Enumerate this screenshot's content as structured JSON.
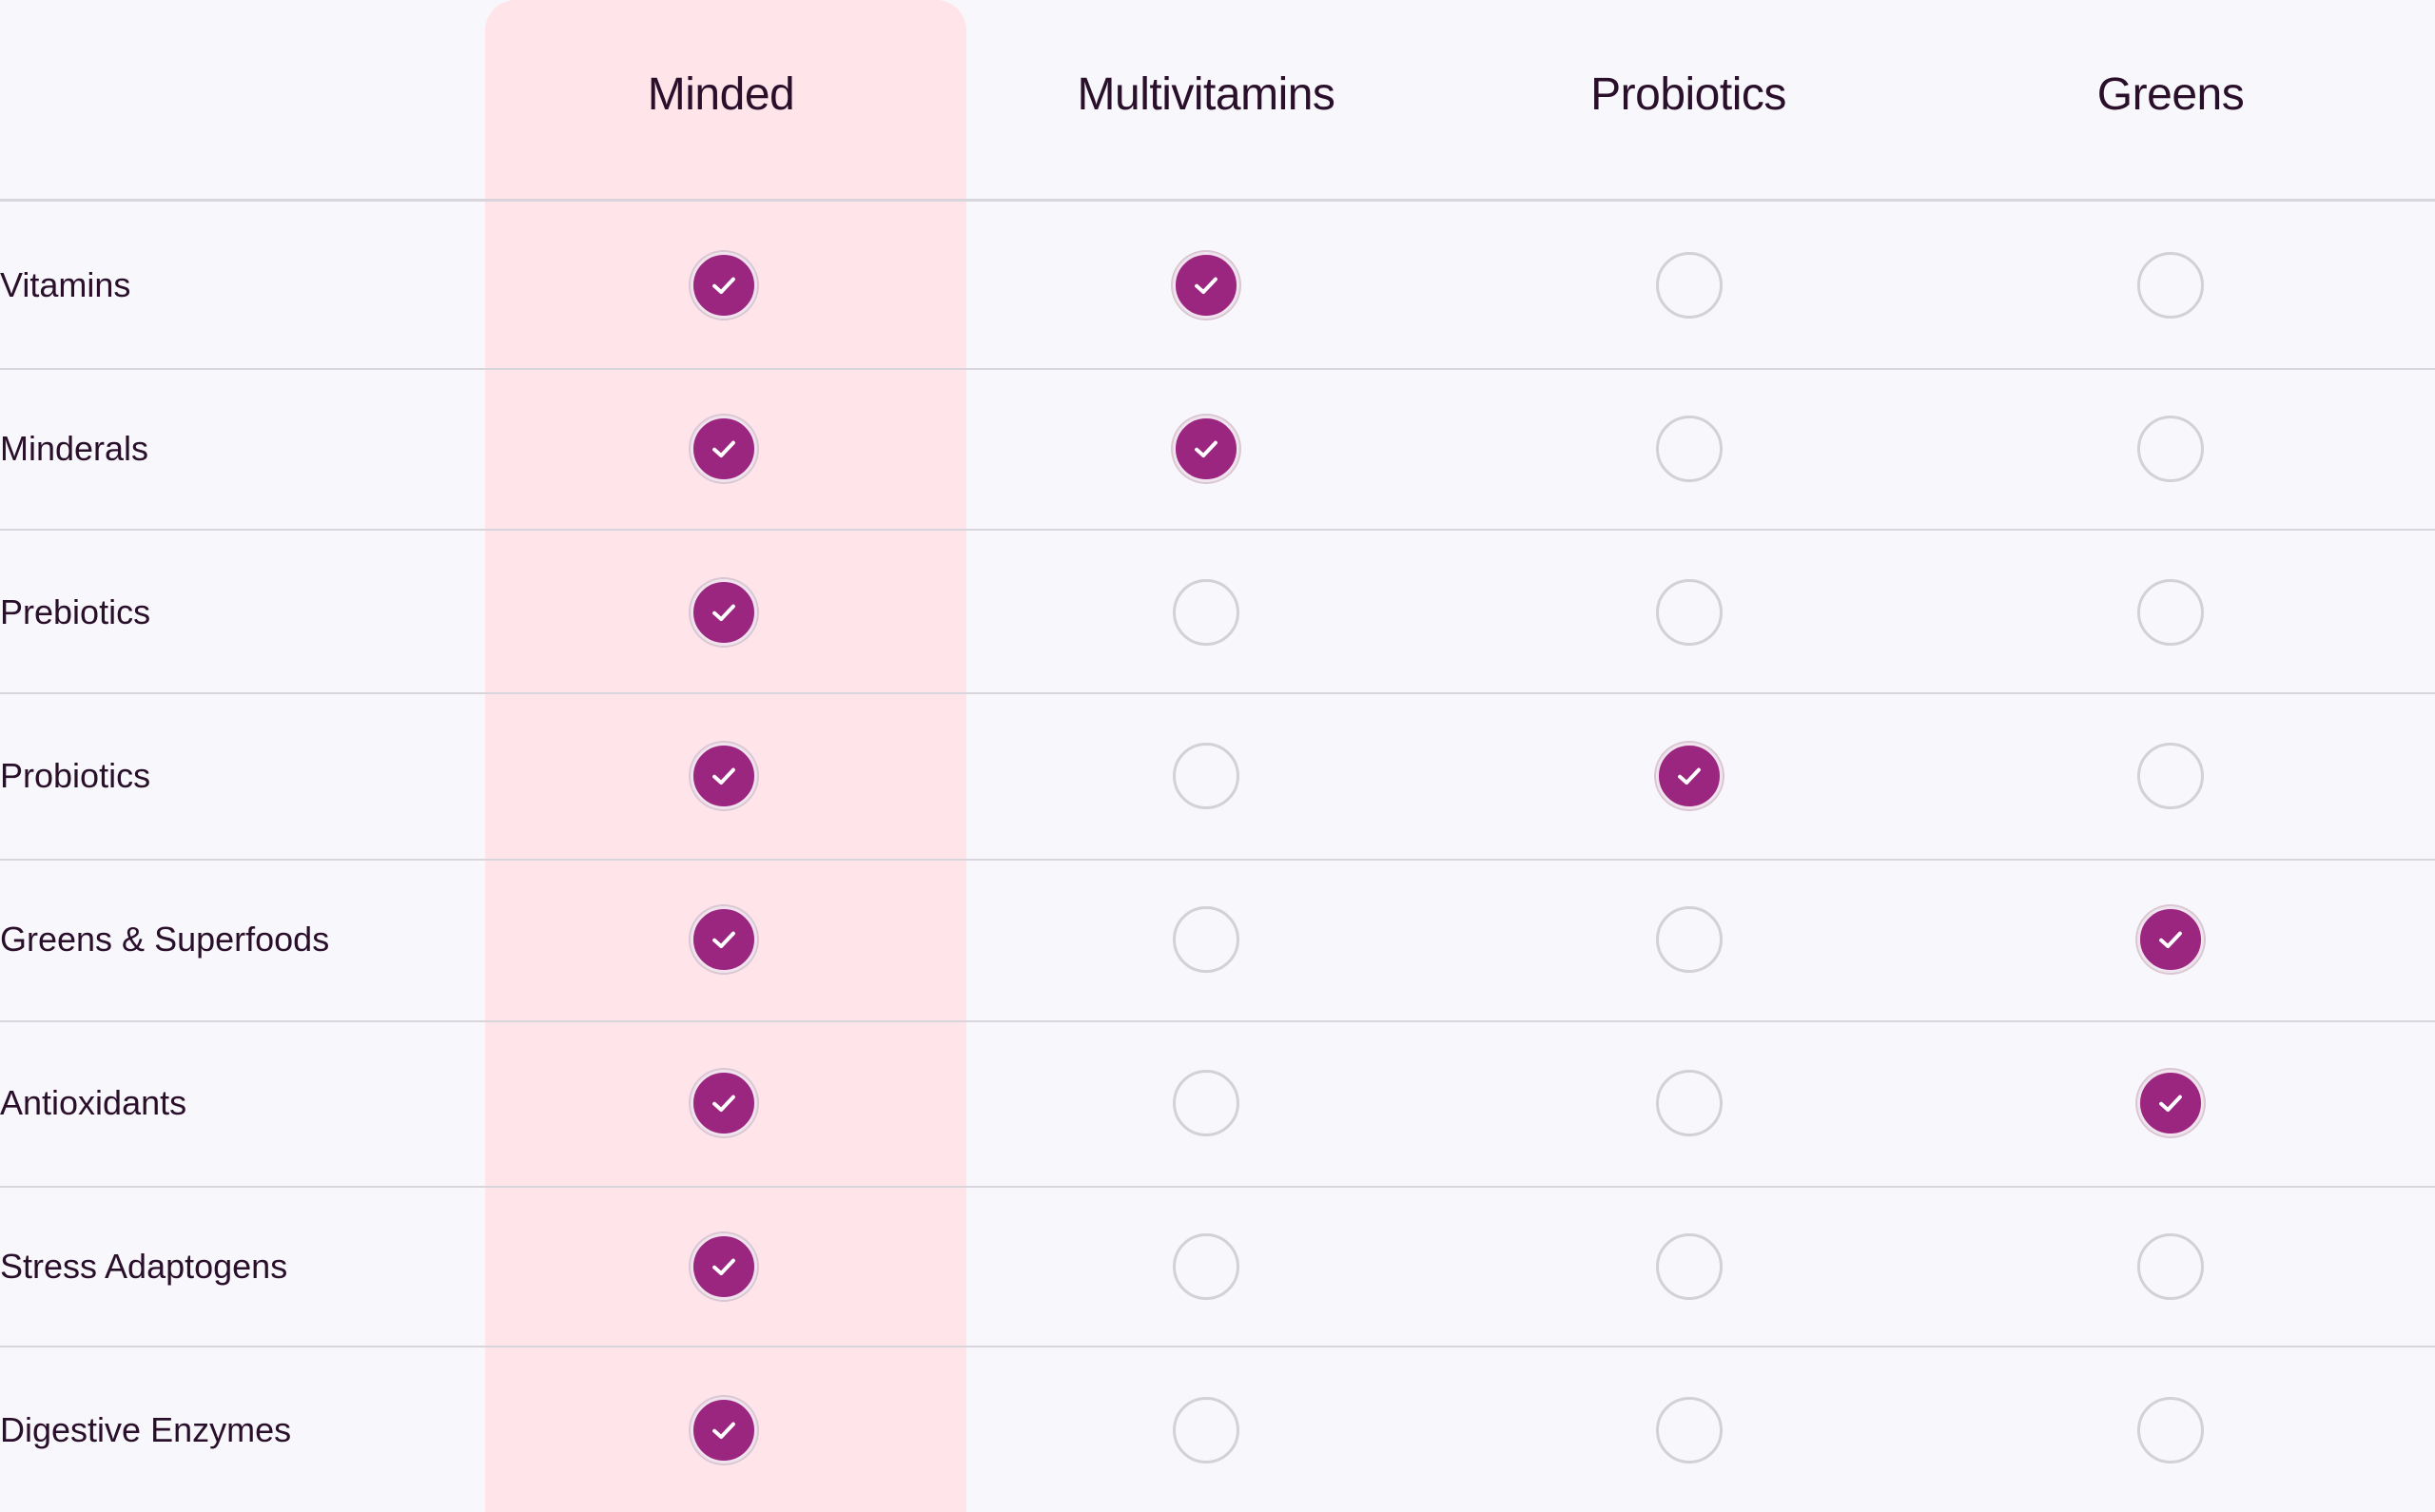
{
  "columns": [
    {
      "label": "Minded"
    },
    {
      "label": "Multivitamins"
    },
    {
      "label": "Probiotics"
    },
    {
      "label": "Greens"
    }
  ],
  "rows": [
    {
      "label": "Vitamins",
      "checks": [
        true,
        true,
        false,
        false
      ]
    },
    {
      "label": "Minderals",
      "checks": [
        true,
        true,
        false,
        false
      ]
    },
    {
      "label": "Prebiotics",
      "checks": [
        true,
        false,
        false,
        false
      ]
    },
    {
      "label": "Probiotics",
      "checks": [
        true,
        false,
        true,
        false
      ]
    },
    {
      "label": "Greens & Superfoods",
      "checks": [
        true,
        false,
        false,
        true
      ]
    },
    {
      "label": "Antioxidants",
      "checks": [
        true,
        false,
        false,
        true
      ]
    },
    {
      "label": " Stress Adaptogens",
      "checks": [
        true,
        false,
        false,
        false
      ]
    },
    {
      "label": "Digestive Enzymes",
      "checks": [
        true,
        false,
        false,
        false
      ]
    }
  ],
  "icons": {
    "checked": "check-circle-filled-icon",
    "unchecked": "empty-circle-icon"
  },
  "colors": {
    "accent": "#9b2680",
    "highlight_column": "#ffe4e9",
    "background": "#f8f7fc",
    "text": "#2a0f2b"
  }
}
